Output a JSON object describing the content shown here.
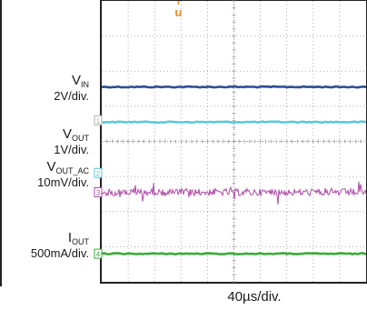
{
  "chart_data": {
    "type": "line",
    "xlabel": "40µs/div.",
    "x_divisions": 10,
    "y_divisions": 8,
    "grid": true,
    "trigger_marker": "u",
    "trigger_marker_color": "#e8892b",
    "background_color": "#ffffff",
    "grid_color": "#9a9a9a",
    "series": [
      {
        "channel": "1",
        "name": "VIN",
        "name_main": "V",
        "name_sub": "IN",
        "scale": "2V/div.",
        "color": "#2a4f9a",
        "style": "flat",
        "level_div": 5.55
      },
      {
        "channel": "",
        "name": "VOUT",
        "name_main": "V",
        "name_sub": "OUT",
        "scale": "1V/div.",
        "color": "#5cc8d6",
        "style": "flat",
        "level_div": 4.55
      },
      {
        "channel": "3",
        "name": "VOUT_AC",
        "name_main": "V",
        "name_sub": "OUT_AC",
        "scale": "10mV/div.",
        "color": "#b04ea8",
        "style": "noisy",
        "level_div": 2.55
      },
      {
        "channel": "4",
        "name": "IOUT",
        "name_main": "I",
        "name_sub": "OUT",
        "scale": "500mA/div.",
        "color": "#3aab38",
        "style": "flat",
        "level_div": 0.8
      }
    ],
    "channel_markers": [
      {
        "label": "1",
        "color": "#b0b0b0",
        "level_div": 4.6
      },
      {
        "label": "2",
        "color": "#5cc8d6",
        "level_div": 3.1
      },
      {
        "label": "3",
        "color": "#b04ea8",
        "level_div": 2.55
      },
      {
        "label": "4",
        "color": "#3aab38",
        "level_div": 0.8
      }
    ]
  }
}
